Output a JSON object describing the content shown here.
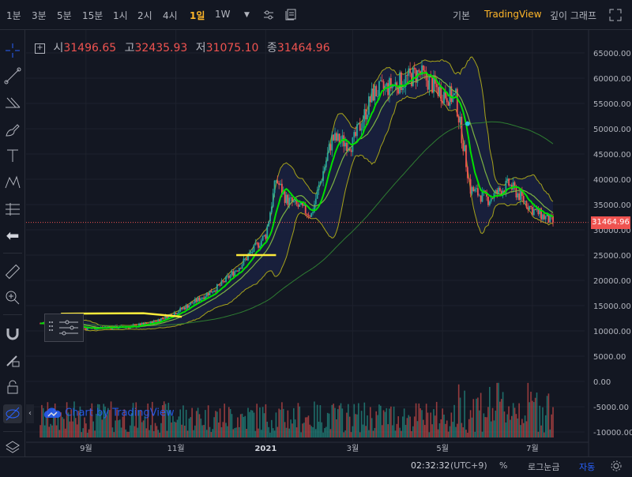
{
  "topbar": {
    "timeframes": [
      "1분",
      "3분",
      "5분",
      "15분",
      "1시",
      "2시",
      "4시",
      "1일",
      "1W"
    ],
    "active_timeframe": "1일",
    "views": [
      "기본",
      "TradingView",
      "깊이 그래프"
    ],
    "active_view": "TradingView"
  },
  "ohlc": {
    "open_label": "시",
    "open": "31496.65",
    "high_label": "고",
    "high": "32435.93",
    "low_label": "저",
    "low": "31075.10",
    "close_label": "종",
    "close": "31464.96"
  },
  "watermark": "Chart by TradingView",
  "bottom": {
    "time": "02:32:32",
    "timezone": "(UTC+9)",
    "percent": "%",
    "log": "로그눈금",
    "auto": "자동"
  },
  "colors": {
    "up": "#26a69a",
    "down": "#ef5350",
    "ma_fast": "#00e000",
    "band": "#a7a31a",
    "accent": "#ffb629"
  },
  "chart_data": {
    "type": "candlestick",
    "y_ticks": [
      "65000.00",
      "60000.00",
      "55000.00",
      "50000.00",
      "45000.00",
      "40000.00",
      "35000.00",
      "30000.00",
      "25000.00",
      "20000.00",
      "15000.00",
      "10000.00",
      "5000.00",
      "0.00",
      "-5000.00",
      "-10000.00"
    ],
    "x_ticks": [
      "9월",
      "11월",
      "2021",
      "3월",
      "5월",
      "7월"
    ],
    "last_price": "31464.96",
    "ylim": [
      -10000,
      65000
    ],
    "x": [
      "2020-08-01",
      "2020-08-15",
      "2020-09-01",
      "2020-09-15",
      "2020-10-01",
      "2020-10-15",
      "2020-11-01",
      "2020-11-15",
      "2020-12-01",
      "2020-12-15",
      "2021-01-01",
      "2021-01-08",
      "2021-01-15",
      "2021-02-01",
      "2021-02-15",
      "2021-03-01",
      "2021-03-15",
      "2021-04-01",
      "2021-04-15",
      "2021-05-01",
      "2021-05-10",
      "2021-05-20",
      "2021-06-01",
      "2021-06-15",
      "2021-07-01",
      "2021-07-15"
    ],
    "close": [
      11500,
      11800,
      10500,
      10700,
      10800,
      11500,
      13700,
      16000,
      19000,
      23000,
      29000,
      40000,
      36000,
      33000,
      48000,
      47000,
      57000,
      59000,
      61000,
      57000,
      56000,
      38000,
      36000,
      39000,
      34000,
      31465
    ]
  }
}
